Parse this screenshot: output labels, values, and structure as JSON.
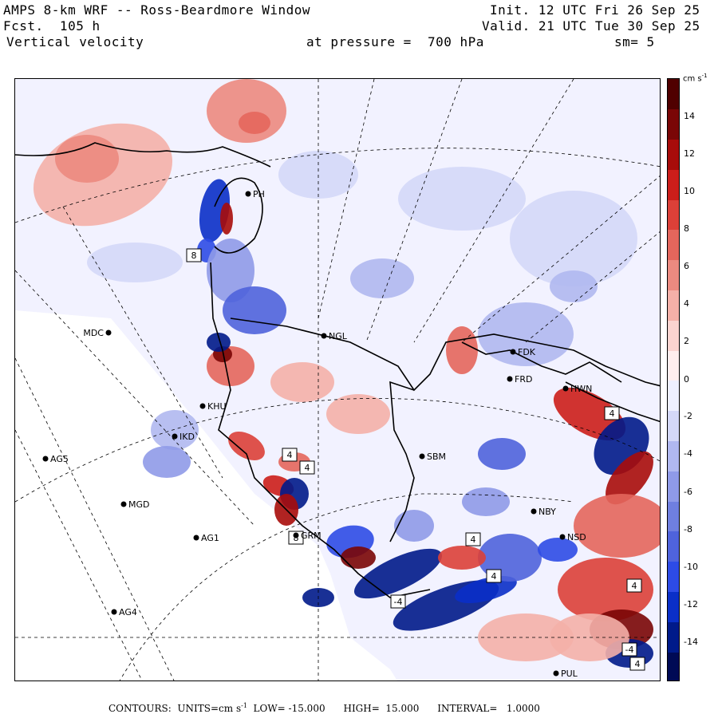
{
  "header": {
    "title": "AMPS 8-km WRF -- Ross-Beardmore Window",
    "forecast": "Fcst.  105 h",
    "field": "Vertical velocity",
    "init": "Init. 12 UTC Fri 26 Sep 25",
    "valid": "Valid. 21 UTC Tue 30 Sep 25",
    "pressure": "at pressure =  700 hPa",
    "smoothing": "sm= 5"
  },
  "colorbar": {
    "units_label": "cm s",
    "units_exp": "-1",
    "ticks": [
      "14",
      "12",
      "10",
      "8",
      "6",
      "4",
      "2",
      "0",
      "-2",
      "-4",
      "-6",
      "-8",
      "-10",
      "-12",
      "-14"
    ],
    "colors": [
      "#000a55",
      "#001a8a",
      "#0a2fc8",
      "#2d4be6",
      "#4f63dc",
      "#6f7fe0",
      "#8f9ae8",
      "#b0b8f0",
      "#d4d8f8",
      "#eef0ff",
      "#ffeeee",
      "#fbd4d0",
      "#f4b0a8",
      "#ec8a80",
      "#e4665c",
      "#dc4038",
      "#cc1e1a",
      "#a80c0a",
      "#7a0606",
      "#500000"
    ]
  },
  "footer": {
    "text": "CONTOURS:  UNITS=cm s",
    "units_exp": "-1",
    "stats": "  LOW= -15.000      HIGH=  15.000      INTERVAL=   1.0000"
  },
  "stations": [
    {
      "code": "MDC"
    },
    {
      "code": "NGL"
    },
    {
      "code": "FDK"
    },
    {
      "code": "FRD"
    },
    {
      "code": "HWN"
    },
    {
      "code": "KHU"
    },
    {
      "code": "IKD"
    },
    {
      "code": "AG5"
    },
    {
      "code": "SBM"
    },
    {
      "code": "MGD"
    },
    {
      "code": "NBY"
    },
    {
      "code": "AG1"
    },
    {
      "code": "GRM"
    },
    {
      "code": "NSD"
    },
    {
      "code": "AG4"
    },
    {
      "code": "PUL"
    },
    {
      "code": "PH"
    }
  ],
  "box_labels": [
    "8",
    "4",
    "4",
    "8",
    "4",
    "4",
    "-4",
    "4",
    "4",
    "-4",
    "4"
  ],
  "colors": {
    "background_field": "#f2f2ff",
    "ice_shelf": "#ffffff",
    "coastline": "#000000",
    "positive": "#e4665c",
    "negative": "#2d4be6"
  }
}
